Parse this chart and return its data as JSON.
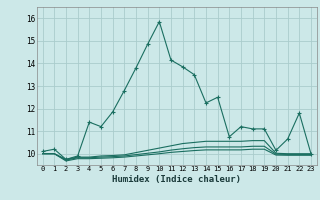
{
  "xlabel": "Humidex (Indice chaleur)",
  "bg_color": "#cce8e8",
  "grid_color": "#aacccc",
  "line_color": "#1a6e60",
  "x_values": [
    0,
    1,
    2,
    3,
    4,
    5,
    6,
    7,
    8,
    9,
    10,
    11,
    12,
    13,
    14,
    15,
    16,
    17,
    18,
    19,
    20,
    21,
    22,
    23
  ],
  "line1": [
    10.1,
    10.2,
    9.75,
    9.9,
    11.4,
    11.2,
    11.85,
    12.8,
    13.8,
    14.85,
    15.85,
    14.15,
    13.85,
    13.5,
    12.25,
    12.5,
    10.75,
    11.2,
    11.1,
    11.1,
    10.15,
    10.65,
    11.8,
    10.0
  ],
  "line2": [
    10.0,
    10.0,
    9.75,
    9.85,
    9.85,
    9.9,
    9.92,
    9.95,
    10.05,
    10.15,
    10.25,
    10.35,
    10.45,
    10.5,
    10.55,
    10.55,
    10.55,
    10.55,
    10.58,
    10.58,
    10.02,
    10.0,
    10.0,
    10.0
  ],
  "line3": [
    10.0,
    10.0,
    9.72,
    9.82,
    9.82,
    9.85,
    9.87,
    9.9,
    9.96,
    10.02,
    10.08,
    10.16,
    10.22,
    10.27,
    10.3,
    10.3,
    10.3,
    10.3,
    10.33,
    10.33,
    9.98,
    9.97,
    9.97,
    9.97
  ],
  "line4": [
    10.0,
    10.0,
    9.68,
    9.78,
    9.78,
    9.8,
    9.82,
    9.85,
    9.9,
    9.95,
    10.0,
    10.06,
    10.1,
    10.14,
    10.17,
    10.17,
    10.17,
    10.17,
    10.2,
    10.2,
    9.94,
    9.93,
    9.93,
    9.93
  ],
  "ylim": [
    9.5,
    16.5
  ],
  "yticks": [
    10,
    11,
    12,
    13,
    14,
    15,
    16
  ],
  "xticks": [
    0,
    1,
    2,
    3,
    4,
    5,
    6,
    7,
    8,
    9,
    10,
    11,
    12,
    13,
    14,
    15,
    16,
    17,
    18,
    19,
    20,
    21,
    22,
    23
  ]
}
